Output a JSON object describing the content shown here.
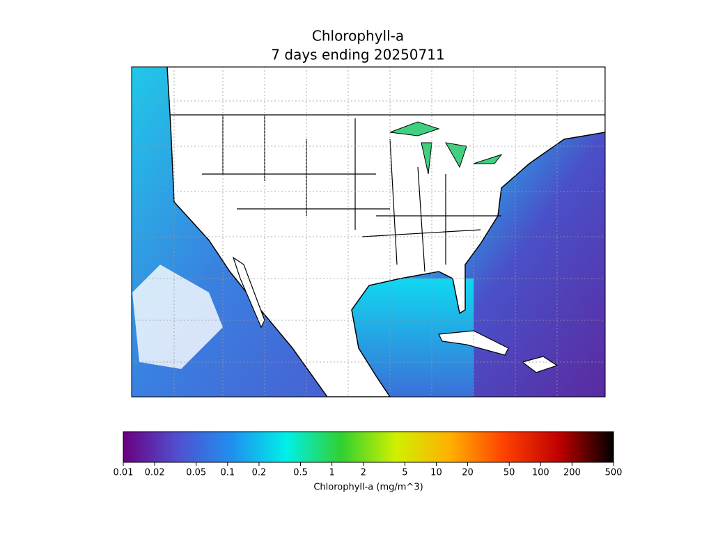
{
  "title": [
    "Chlorophyll-a",
    "7 days ending 20250711"
  ],
  "colorbar": {
    "label": "Chlorophyll-a (mg/m^3)",
    "log": true,
    "lim": [
      0.01,
      500
    ],
    "ticks": [
      0.01,
      0.02,
      0.05,
      0.1,
      0.2,
      0.5,
      1,
      2,
      5,
      10,
      20,
      50,
      100,
      200,
      500
    ],
    "colors": [
      "#6a0080",
      "#5050d0",
      "#2090f0",
      "#00f0e8",
      "#30d030",
      "#d0f000",
      "#ffb000",
      "#ff4000",
      "#c00000",
      "#000000"
    ]
  }
}
